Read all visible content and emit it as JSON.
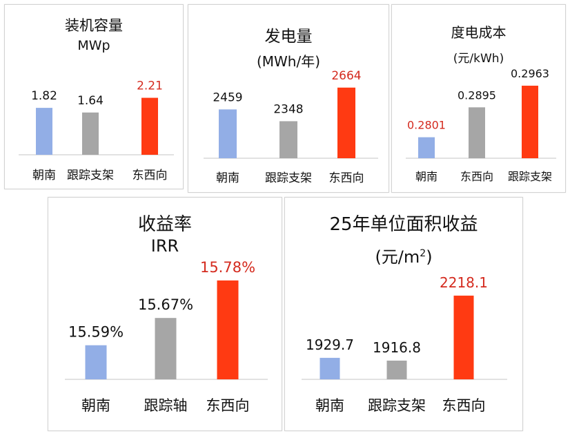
{
  "colors": {
    "south": "#92aee6",
    "tracker": "#a6a6a6",
    "eastwest": "#ff3a12",
    "highlight": "#d42a1e",
    "text": "#111111"
  },
  "chart_data": [
    {
      "type": "bar",
      "title": "装机容量",
      "subtitle": "MWp",
      "categories": [
        "朝南",
        "跟踪支架",
        "东西向"
      ],
      "values": [
        1.82,
        1.64,
        2.21
      ],
      "value_labels": [
        "1.82",
        "1.64",
        "2.21"
      ],
      "bar_colors": [
        "#92aee6",
        "#a6a6a6",
        "#ff3a12"
      ],
      "highlight_index": 2,
      "ylim": [
        0,
        2.6
      ]
    },
    {
      "type": "bar",
      "title": "发电量",
      "subtitle": "(MWh/年)",
      "categories": [
        "朝南",
        "跟踪支架",
        "东西向"
      ],
      "values": [
        2459,
        2348,
        2664
      ],
      "value_labels": [
        "2459",
        "2348",
        "2664"
      ],
      "bar_colors": [
        "#92aee6",
        "#a6a6a6",
        "#ff3a12"
      ],
      "highlight_index": 2,
      "ylim": [
        2000,
        2760
      ]
    },
    {
      "type": "bar",
      "title": "度电成本",
      "subtitle": "(元/kWh)",
      "categories": [
        "朝南",
        "东西向",
        "跟踪支架"
      ],
      "values": [
        0.2801,
        0.2895,
        0.2963
      ],
      "value_labels": [
        "0.2801",
        "0.2895",
        "0.2963"
      ],
      "bar_colors": [
        "#92aee6",
        "#a6a6a6",
        "#ff3a12"
      ],
      "highlight_index": 0,
      "ylim": [
        0.2735,
        0.3
      ]
    },
    {
      "type": "bar",
      "title": "收益率",
      "subtitle": "IRR",
      "categories": [
        "朝南",
        "跟踪轴",
        "东西向"
      ],
      "values": [
        15.59,
        15.67,
        15.78
      ],
      "value_labels": [
        "15.59%",
        "15.67%",
        "15.78%"
      ],
      "bar_colors": [
        "#92aee6",
        "#a6a6a6",
        "#ff3a12"
      ],
      "highlight_index": 2,
      "ylim": [
        15.49,
        15.8
      ]
    },
    {
      "type": "bar",
      "title": "25年单位面积收益",
      "subtitle_main": "(元/m",
      "subtitle_sup": "2",
      "subtitle_end": ")",
      "categories": [
        "朝南",
        "跟踪支架",
        "东西向"
      ],
      "values": [
        1929.7,
        1916.8,
        2218.1
      ],
      "value_labels": [
        "1929.7",
        "1916.8",
        "2218.1"
      ],
      "bar_colors": [
        "#92aee6",
        "#a6a6a6",
        "#ff3a12"
      ],
      "highlight_index": 2,
      "ylim": [
        1830,
        2240
      ]
    }
  ]
}
